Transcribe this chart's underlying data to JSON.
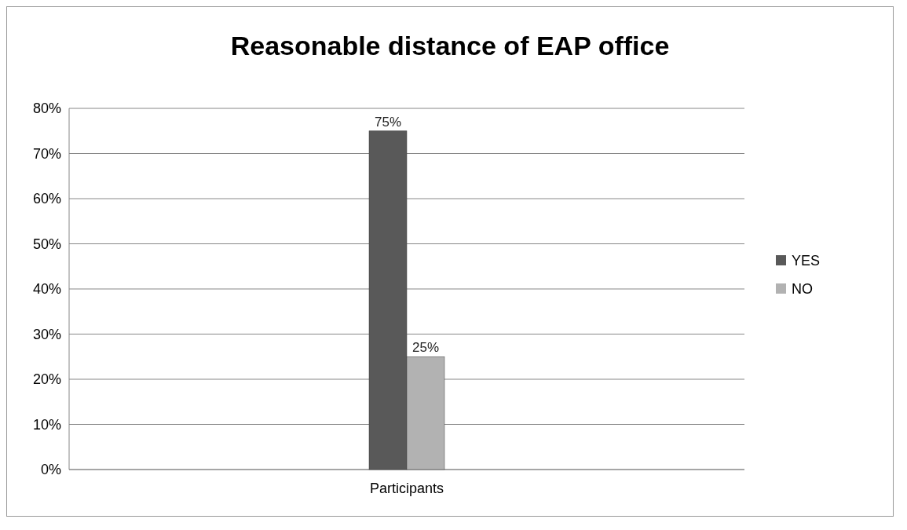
{
  "chart_data": {
    "type": "bar",
    "title": "Reasonable distance of EAP office",
    "categories": [
      "Participants"
    ],
    "series": [
      {
        "name": "YES",
        "color": "#595959",
        "values": [
          75
        ],
        "value_labels": [
          "75%"
        ]
      },
      {
        "name": "NO",
        "color": "#b2b2b2",
        "values": [
          25
        ],
        "value_labels": [
          "25%"
        ]
      }
    ],
    "ylim": [
      0,
      80
    ],
    "yticks": [
      {
        "value": 0,
        "label": "0%"
      },
      {
        "value": 10,
        "label": "10%"
      },
      {
        "value": 20,
        "label": "20%"
      },
      {
        "value": 30,
        "label": "30%"
      },
      {
        "value": 40,
        "label": "40%"
      },
      {
        "value": 50,
        "label": "50%"
      },
      {
        "value": 60,
        "label": "60%"
      },
      {
        "value": 70,
        "label": "70%"
      },
      {
        "value": 80,
        "label": "80%"
      }
    ],
    "grid": "y",
    "legend": "right"
  }
}
